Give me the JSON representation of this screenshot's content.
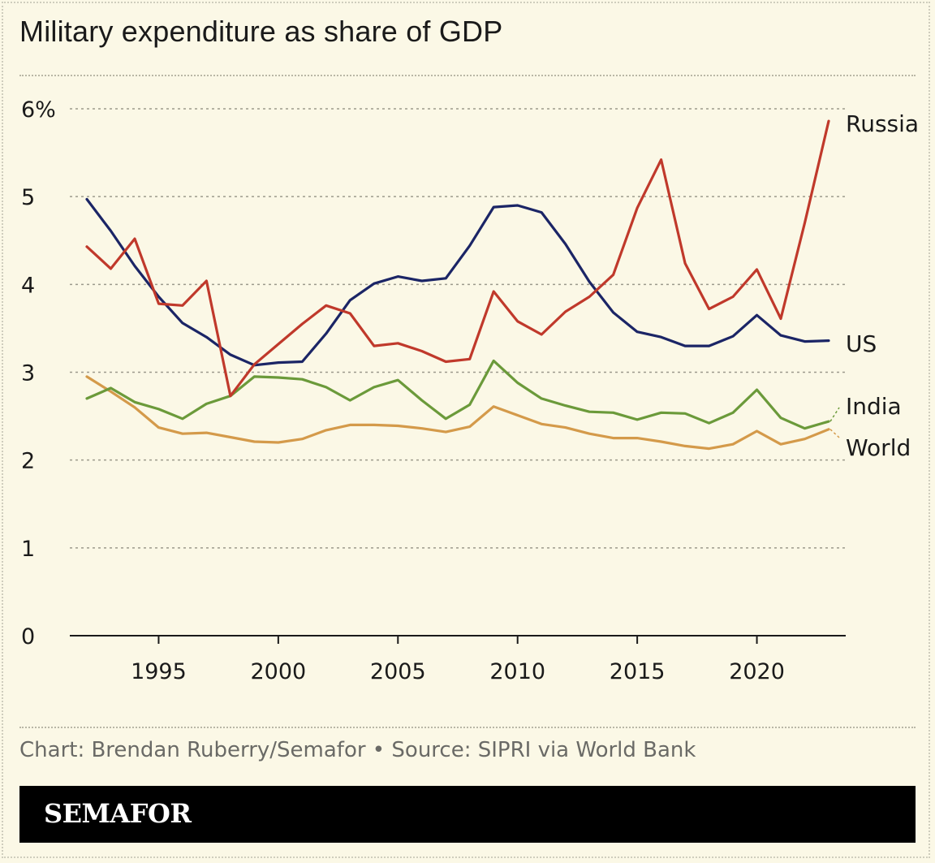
{
  "title": "Military expenditure as share of GDP",
  "source": "Chart: Brendan Ruberry/Semafor • Source: SIPRI via World Bank",
  "brand": "SEMAFOR",
  "colors": {
    "background": "#fbf8e6",
    "russia": "#c0392b",
    "us": "#1b2566",
    "india": "#6b9a3a",
    "world": "#d49a4a",
    "grid": "#9c9a8c",
    "axis": "#1a1a1a"
  },
  "chart_data": {
    "type": "line",
    "title": "Military expenditure as share of GDP",
    "xlabel": "",
    "ylabel": "",
    "xlim": [
      1992,
      2023
    ],
    "ylim": [
      0,
      6
    ],
    "y_ticks": [
      {
        "value": 0,
        "label": "0"
      },
      {
        "value": 1,
        "label": "1"
      },
      {
        "value": 2,
        "label": "2"
      },
      {
        "value": 3,
        "label": "3"
      },
      {
        "value": 4,
        "label": "4"
      },
      {
        "value": 5,
        "label": "5"
      },
      {
        "value": 6,
        "label": "6%"
      }
    ],
    "x_ticks": [
      {
        "value": 1995,
        "label": "1995"
      },
      {
        "value": 2000,
        "label": "2000"
      },
      {
        "value": 2005,
        "label": "2005"
      },
      {
        "value": 2010,
        "label": "2010"
      },
      {
        "value": 2015,
        "label": "2015"
      },
      {
        "value": 2020,
        "label": "2020"
      }
    ],
    "grid": true,
    "x": [
      1992,
      1993,
      1994,
      1995,
      1996,
      1997,
      1998,
      1999,
      2000,
      2001,
      2002,
      2003,
      2004,
      2005,
      2006,
      2007,
      2008,
      2009,
      2010,
      2011,
      2012,
      2013,
      2014,
      2015,
      2016,
      2017,
      2018,
      2019,
      2020,
      2021,
      2022,
      2023
    ],
    "series": [
      {
        "name": "Russia",
        "color": "#c0392b",
        "values": [
          4.43,
          4.18,
          4.52,
          3.78,
          3.76,
          4.04,
          2.73,
          3.09,
          3.32,
          3.55,
          3.76,
          3.67,
          3.3,
          3.33,
          3.24,
          3.12,
          3.15,
          3.92,
          3.58,
          3.43,
          3.69,
          3.86,
          4.11,
          4.87,
          5.42,
          4.24,
          3.72,
          3.86,
          4.17,
          3.61,
          4.7,
          5.86
        ]
      },
      {
        "name": "US",
        "color": "#1b2566",
        "values": [
          4.97,
          4.61,
          4.21,
          3.86,
          3.56,
          3.4,
          3.2,
          3.08,
          3.11,
          3.12,
          3.44,
          3.82,
          4.01,
          4.09,
          4.04,
          4.07,
          4.44,
          4.88,
          4.9,
          4.82,
          4.46,
          4.03,
          3.68,
          3.46,
          3.4,
          3.3,
          3.3,
          3.41,
          3.65,
          3.42,
          3.35,
          3.36
        ]
      },
      {
        "name": "India",
        "color": "#6b9a3a",
        "values": [
          2.7,
          2.82,
          2.66,
          2.58,
          2.47,
          2.64,
          2.73,
          2.95,
          2.94,
          2.92,
          2.83,
          2.68,
          2.83,
          2.91,
          2.68,
          2.47,
          2.63,
          3.13,
          2.88,
          2.7,
          2.62,
          2.55,
          2.54,
          2.46,
          2.54,
          2.53,
          2.42,
          2.54,
          2.8,
          2.48,
          2.36,
          2.44
        ]
      },
      {
        "name": "World",
        "color": "#d49a4a",
        "values": [
          2.95,
          2.78,
          2.6,
          2.37,
          2.3,
          2.31,
          2.26,
          2.21,
          2.2,
          2.24,
          2.34,
          2.4,
          2.4,
          2.39,
          2.36,
          2.32,
          2.38,
          2.61,
          2.51,
          2.41,
          2.37,
          2.3,
          2.25,
          2.25,
          2.21,
          2.16,
          2.13,
          2.18,
          2.33,
          2.18,
          2.24,
          2.35
        ]
      }
    ]
  }
}
